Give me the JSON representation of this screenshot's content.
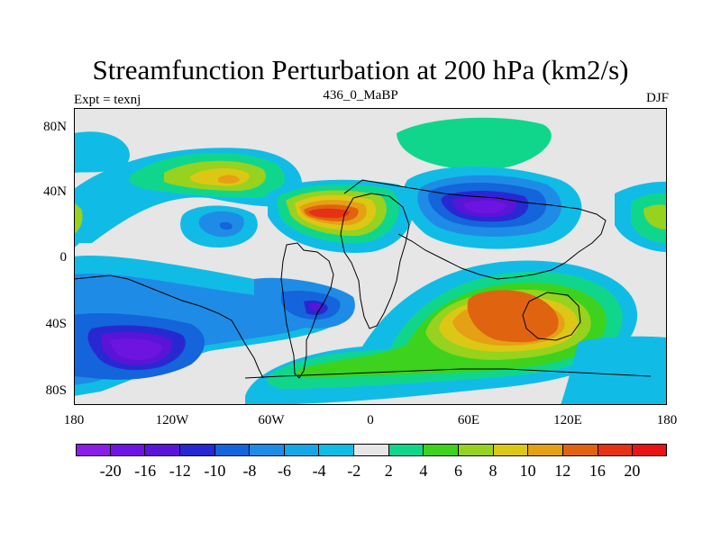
{
  "header": {
    "title": "Streamfunction Perturbation at 200 hPa (km2/s)",
    "left_string": "Expt = texnj",
    "center_string": "436_0_MaBP",
    "right_string": "DJF"
  },
  "map": {
    "lat_labels": [
      "80N",
      "40N",
      "0",
      "40S",
      "80S"
    ],
    "lon_labels": [
      "180",
      "120W",
      "60W",
      "0",
      "60E",
      "120E",
      "180"
    ],
    "background_color": "#e6e6e6"
  },
  "colorbar": {
    "labels": [
      "-20",
      "-16",
      "-12",
      "-10",
      "-8",
      "-6",
      "-4",
      "-2",
      "2",
      "4",
      "6",
      "8",
      "10",
      "12",
      "16",
      "20"
    ],
    "colors": [
      "#8a1ee6",
      "#6e14e0",
      "#5a14d8",
      "#2828d2",
      "#1464dc",
      "#1e8ce6",
      "#14a8e6",
      "#10bce6",
      "#e6e6e6",
      "#10d68c",
      "#3cd21e",
      "#96d21e",
      "#dcc814",
      "#e6a014",
      "#e06410",
      "#e63214",
      "#e61414"
    ]
  }
}
